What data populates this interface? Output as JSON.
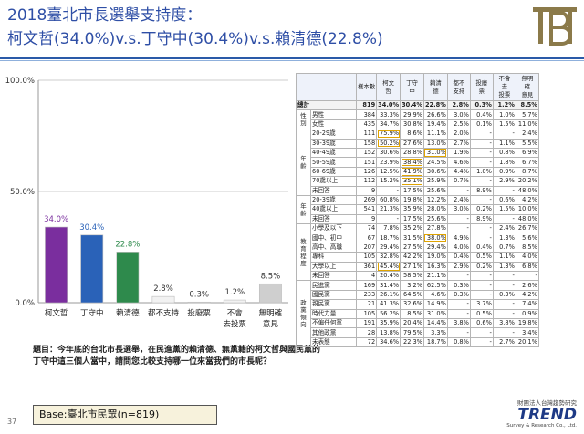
{
  "title_line1": "2018臺北市長選舉支持度：",
  "title_line2": "柯文哲(34.0%)v.s.丁守中(30.4%)v.s.賴清德(22.8%)",
  "question": "題目：今年底的台北市長選舉，在民進黨的賴清德、無黨籍的柯文哲與國民黨的丁守中這三個人當中，請問您比較支持哪一位來當我們的市長呢？",
  "base": "Base:臺北市民眾(n=819)",
  "page_number": "37",
  "brand": {
    "line_a": "財團法人台灣趨勢研究",
    "name": "TREND",
    "line_c": "Survey & Research Co., Ltd."
  },
  "chart_data": {
    "type": "bar",
    "categories": [
      "柯文哲",
      "丁守中",
      "賴清德",
      "都不支持",
      "投廢票",
      "不會去投票",
      "無明確意見"
    ],
    "category_lines": [
      [
        "柯文哲"
      ],
      [
        "丁守中"
      ],
      [
        "賴清德"
      ],
      [
        "都不支持"
      ],
      [
        "投廢票"
      ],
      [
        "不會",
        "去投票"
      ],
      [
        "無明確",
        "意見"
      ]
    ],
    "values": [
      34.0,
      30.4,
      22.8,
      2.8,
      0.3,
      1.2,
      8.5
    ],
    "value_labels": [
      "34.0%",
      "30.4%",
      "22.8%",
      "2.8%",
      "0.3%",
      "1.2%",
      "8.5%"
    ],
    "colors": [
      "#7a2e9e",
      "#2a62b8",
      "#2e8a4c",
      "#f2f2f2",
      "#f2f2f2",
      "#f2f2f2",
      "#cfcfcf"
    ],
    "label_colors": [
      "#7a2e9e",
      "#2a62b8",
      "#2e8a4c",
      "#333333",
      "#333333",
      "#333333",
      "#333333"
    ],
    "yticks": [
      "0.0%",
      "50.0%",
      "100.0%"
    ],
    "ylim": [
      0,
      100
    ]
  },
  "crosstab": {
    "headers": [
      {
        "lines": [
          "樣本數"
        ]
      },
      {
        "lines": [
          "柯文",
          "哲"
        ]
      },
      {
        "lines": [
          "丁守",
          "中"
        ]
      },
      {
        "lines": [
          "賴清",
          "德"
        ]
      },
      {
        "lines": [
          "都不",
          "支持"
        ]
      },
      {
        "lines": [
          "投廢",
          "票"
        ]
      },
      {
        "lines": [
          "不會",
          "去",
          "投票"
        ]
      },
      {
        "lines": [
          "無明",
          "確",
          "意見"
        ]
      }
    ],
    "total": {
      "label": "總計",
      "values": [
        "819",
        "34.0%",
        "30.4%",
        "22.8%",
        "2.8%",
        "0.3%",
        "1.2%",
        "8.5%"
      ]
    },
    "groups": [
      {
        "name": [
          "性",
          "別"
        ],
        "rows": [
          {
            "label": "男性",
            "values": [
              "384",
              "33.3%",
              "29.9%",
              "26.6%",
              "3.0%",
              "0.4%",
              "1.0%",
              "5.7%"
            ]
          },
          {
            "label": "女性",
            "values": [
              "435",
              "34.7%",
              "30.8%",
              "19.4%",
              "2.5%",
              "0.1%",
              "1.5%",
              "11.0%"
            ]
          }
        ]
      },
      {
        "name": [
          "年",
          "齡"
        ],
        "rows": [
          {
            "label": "20-29歲",
            "values": [
              "111",
              "75.9%",
              "8.6%",
              "11.1%",
              "2.0%",
              "-",
              "-",
              "2.4%"
            ],
            "hl": [
              1
            ]
          },
          {
            "label": "30-39歲",
            "values": [
              "158",
              "50.2%",
              "27.6%",
              "13.0%",
              "2.7%",
              "-",
              "1.1%",
              "5.5%"
            ],
            "hl": [
              1
            ]
          },
          {
            "label": "40-49歲",
            "values": [
              "152",
              "30.6%",
              "28.8%",
              "31.0%",
              "1.9%",
              "-",
              "0.8%",
              "6.9%"
            ],
            "hl": [
              3
            ]
          },
          {
            "label": "50-59歲",
            "values": [
              "151",
              "23.9%",
              "38.4%",
              "24.5%",
              "4.6%",
              "-",
              "1.8%",
              "6.7%"
            ],
            "hl": [
              2
            ]
          },
          {
            "label": "60-69歲",
            "values": [
              "126",
              "12.5%",
              "41.9%",
              "30.6%",
              "4.4%",
              "1.0%",
              "0.9%",
              "8.7%"
            ],
            "hl": [
              2
            ]
          },
          {
            "label": "70歲以上",
            "values": [
              "112",
              "15.2%",
              "35.1%",
              "25.9%",
              "0.7%",
              "-",
              "2.9%",
              "20.2%"
            ],
            "hl": [
              2
            ]
          },
          {
            "label": "未回答",
            "values": [
              "9",
              "-",
              "17.5%",
              "25.6%",
              "-",
              "8.9%",
              "-",
              "48.0%"
            ]
          }
        ]
      },
      {
        "name": [
          "年",
          "齡"
        ],
        "rows": [
          {
            "label": "20-39歲",
            "values": [
              "269",
              "60.8%",
              "19.8%",
              "12.2%",
              "2.4%",
              "-",
              "0.6%",
              "4.2%"
            ]
          },
          {
            "label": "40歲以上",
            "values": [
              "541",
              "21.3%",
              "35.9%",
              "28.0%",
              "3.0%",
              "0.2%",
              "1.5%",
              "10.0%"
            ]
          },
          {
            "label": "未回答",
            "values": [
              "9",
              "-",
              "17.5%",
              "25.6%",
              "-",
              "8.9%",
              "-",
              "48.0%"
            ]
          }
        ]
      },
      {
        "name": [
          "教",
          "育",
          "程",
          "度"
        ],
        "rows": [
          {
            "label": "小學及以下",
            "values": [
              "74",
              "7.8%",
              "35.2%",
              "27.8%",
              "-",
              "-",
              "2.4%",
              "26.7%"
            ]
          },
          {
            "label": "國中、初中",
            "values": [
              "67",
              "18.7%",
              "31.5%",
              "38.0%",
              "4.9%",
              "-",
              "1.3%",
              "5.6%"
            ],
            "hl": [
              3
            ]
          },
          {
            "label": "高中、高職",
            "values": [
              "207",
              "29.4%",
              "27.5%",
              "29.4%",
              "4.0%",
              "0.4%",
              "0.7%",
              "8.5%"
            ]
          },
          {
            "label": "專科",
            "values": [
              "105",
              "32.8%",
              "42.2%",
              "19.0%",
              "0.4%",
              "0.5%",
              "1.1%",
              "4.0%"
            ]
          },
          {
            "label": "大學以上",
            "values": [
              "361",
              "45.4%",
              "27.1%",
              "16.3%",
              "2.9%",
              "0.2%",
              "1.3%",
              "6.8%"
            ],
            "hl": [
              1
            ]
          },
          {
            "label": "未回答",
            "values": [
              "4",
              "20.4%",
              "58.5%",
              "21.1%",
              "-",
              "-",
              "-",
              "-"
            ]
          }
        ]
      },
      {
        "name": [
          "政",
          "黨",
          "傾",
          "向"
        ],
        "rows": [
          {
            "label": "民進黨",
            "values": [
              "169",
              "31.4%",
              "3.2%",
              "62.5%",
              "0.3%",
              "-",
              "-",
              "2.6%"
            ]
          },
          {
            "label": "國民黨",
            "values": [
              "233",
              "26.1%",
              "64.5%",
              "4.6%",
              "0.3%",
              "-",
              "0.3%",
              "4.2%"
            ]
          },
          {
            "label": "親民黨",
            "values": [
              "21",
              "41.3%",
              "32.6%",
              "14.9%",
              "-",
              "3.7%",
              "-",
              "7.4%"
            ]
          },
          {
            "label": "時代力量",
            "values": [
              "105",
              "56.2%",
              "8.5%",
              "31.0%",
              "-",
              "0.5%",
              "-",
              "0.9%"
            ]
          },
          {
            "label": "不偏任何黨",
            "values": [
              "191",
              "35.9%",
              "20.4%",
              "14.4%",
              "3.8%",
              "0.6%",
              "3.8%",
              "19.8%"
            ]
          },
          {
            "label": "其他政黨",
            "values": [
              "28",
              "13.8%",
              "79.5%",
              "3.3%",
              "-",
              "-",
              "-",
              "3.4%"
            ]
          },
          {
            "label": "未表態",
            "values": [
              "72",
              "34.6%",
              "22.3%",
              "18.7%",
              "0.8%",
              "-",
              "2.7%",
              "20.1%"
            ]
          }
        ]
      }
    ]
  }
}
